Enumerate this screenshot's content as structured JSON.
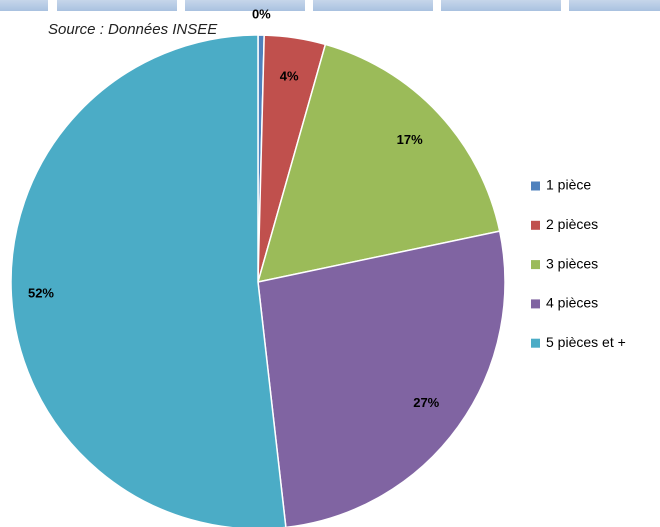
{
  "chart_data": {
    "type": "pie",
    "subtitle": "Source : Données INSEE",
    "categories": [
      "1 pièce",
      "2 pièces",
      "3 pièces",
      "4 pièces",
      "5 pièces et +"
    ],
    "values": [
      0.4,
      4,
      17.3,
      26.5,
      51.8
    ],
    "value_labels": [
      "0%",
      "4%",
      "17%",
      "27%",
      "52%"
    ],
    "colors": [
      "#4f81bd",
      "#c0504d",
      "#9bbb59",
      "#8064a2",
      "#4bacc6"
    ],
    "legend": "right"
  }
}
